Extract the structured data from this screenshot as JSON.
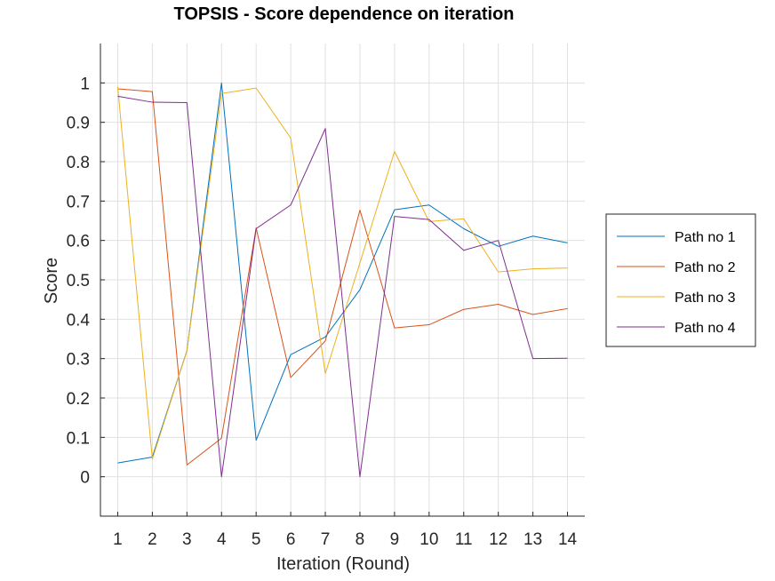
{
  "chart_data": {
    "type": "line",
    "title": "TOPSIS - Score dependence on iteration",
    "xlabel": "Iteration (Round)",
    "ylabel": "Score",
    "x": [
      1,
      2,
      3,
      4,
      5,
      6,
      7,
      8,
      9,
      10,
      11,
      12,
      13,
      14
    ],
    "xlim": [
      0.5,
      14.5
    ],
    "ylim": [
      -0.1,
      1.1
    ],
    "xticks": [
      "1",
      "2",
      "3",
      "4",
      "5",
      "6",
      "7",
      "8",
      "9",
      "10",
      "11",
      "12",
      "13",
      "14"
    ],
    "yticks": [
      "0",
      "0.1",
      "0.2",
      "0.3",
      "0.4",
      "0.5",
      "0.6",
      "0.7",
      "0.8",
      "0.9",
      "1"
    ],
    "grid": true,
    "legend_position": "outside-right",
    "series": [
      {
        "name": "Path no 1",
        "color": "#0072bd",
        "values": [
          0.035,
          0.05,
          0.32,
          1.0,
          0.093,
          0.31,
          0.355,
          0.475,
          0.678,
          0.69,
          0.63,
          0.585,
          0.611,
          0.594
        ]
      },
      {
        "name": "Path no 2",
        "color": "#d95319",
        "values": [
          0.985,
          0.978,
          0.03,
          0.098,
          0.632,
          0.252,
          0.345,
          0.677,
          0.378,
          0.386,
          0.425,
          0.438,
          0.412,
          0.427
        ]
      },
      {
        "name": "Path no 3",
        "color": "#edb120",
        "values": [
          0.99,
          0.045,
          0.32,
          0.973,
          0.987,
          0.86,
          0.262,
          0.543,
          0.826,
          0.648,
          0.655,
          0.52,
          0.528,
          0.53
        ]
      },
      {
        "name": "Path no 4",
        "color": "#7e2f8e",
        "values": [
          0.966,
          0.951,
          0.95,
          0.0,
          0.63,
          0.69,
          0.884,
          0.0,
          0.661,
          0.653,
          0.575,
          0.6,
          0.3,
          0.301
        ]
      }
    ]
  }
}
